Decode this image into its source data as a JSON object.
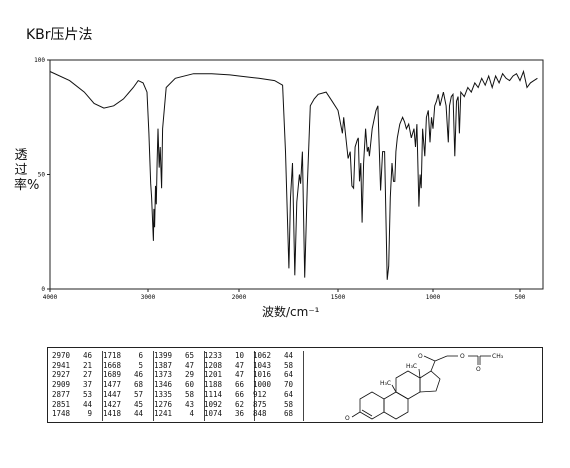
{
  "page": {
    "title": "KBr压片法"
  },
  "chart_data": {
    "type": "line",
    "xlabel": "波数/cm⁻¹",
    "ylabel": "透过率%",
    "xlim": [
      4000,
      400
    ],
    "ylim": [
      0,
      100
    ],
    "x_ticks": [
      4000,
      3000,
      2000,
      1500,
      1000,
      500
    ],
    "x_tick_labels": [
      "4000",
      "3000",
      "2000",
      "1500",
      "1000",
      "500"
    ],
    "y_ticks": [
      0,
      50,
      100
    ],
    "y_tick_labels": [
      "0",
      "50",
      "100"
    ],
    "grid": false,
    "series": [
      {
        "points": [
          [
            4000,
            95
          ],
          [
            3800,
            91
          ],
          [
            3650,
            86
          ],
          [
            3550,
            81
          ],
          [
            3450,
            79
          ],
          [
            3350,
            80
          ],
          [
            3250,
            83
          ],
          [
            3150,
            88
          ],
          [
            3100,
            91
          ],
          [
            3050,
            90
          ],
          [
            3010,
            86
          ],
          [
            2990,
            68
          ],
          [
            2970,
            46
          ],
          [
            2960,
            40
          ],
          [
            2941,
            21
          ],
          [
            2935,
            35
          ],
          [
            2927,
            27
          ],
          [
            2918,
            45
          ],
          [
            2909,
            37
          ],
          [
            2900,
            55
          ],
          [
            2890,
            70
          ],
          [
            2877,
            53
          ],
          [
            2866,
            62
          ],
          [
            2851,
            44
          ],
          [
            2840,
            70
          ],
          [
            2800,
            88
          ],
          [
            2700,
            92
          ],
          [
            2500,
            94
          ],
          [
            2300,
            94
          ],
          [
            2100,
            93.5
          ],
          [
            2000,
            93
          ],
          [
            1900,
            92
          ],
          [
            1820,
            91
          ],
          [
            1780,
            89
          ],
          [
            1765,
            60
          ],
          [
            1748,
            9
          ],
          [
            1740,
            40
          ],
          [
            1730,
            55
          ],
          [
            1718,
            6
          ],
          [
            1708,
            38
          ],
          [
            1695,
            50
          ],
          [
            1689,
            46
          ],
          [
            1680,
            60
          ],
          [
            1668,
            5
          ],
          [
            1655,
            45
          ],
          [
            1640,
            80
          ],
          [
            1620,
            83
          ],
          [
            1600,
            85
          ],
          [
            1560,
            86
          ],
          [
            1530,
            82
          ],
          [
            1500,
            78
          ],
          [
            1477,
            68
          ],
          [
            1470,
            75
          ],
          [
            1447,
            57
          ],
          [
            1436,
            60
          ],
          [
            1427,
            45
          ],
          [
            1418,
            44
          ],
          [
            1410,
            62
          ],
          [
            1399,
            65
          ],
          [
            1393,
            66
          ],
          [
            1387,
            47
          ],
          [
            1380,
            55
          ],
          [
            1373,
            29
          ],
          [
            1365,
            55
          ],
          [
            1355,
            70
          ],
          [
            1346,
            60
          ],
          [
            1340,
            62
          ],
          [
            1335,
            58
          ],
          [
            1320,
            70
          ],
          [
            1300,
            78
          ],
          [
            1290,
            80
          ],
          [
            1276,
            43
          ],
          [
            1265,
            60
          ],
          [
            1255,
            60
          ],
          [
            1241,
            4
          ],
          [
            1233,
            10
          ],
          [
            1225,
            40
          ],
          [
            1216,
            55
          ],
          [
            1208,
            47
          ],
          [
            1201,
            47
          ],
          [
            1195,
            60
          ],
          [
            1188,
            66
          ],
          [
            1175,
            72
          ],
          [
            1160,
            75
          ],
          [
            1150,
            73
          ],
          [
            1140,
            70
          ],
          [
            1128,
            72
          ],
          [
            1114,
            66
          ],
          [
            1100,
            70
          ],
          [
            1092,
            62
          ],
          [
            1085,
            72
          ],
          [
            1074,
            36
          ],
          [
            1068,
            50
          ],
          [
            1062,
            44
          ],
          [
            1055,
            70
          ],
          [
            1043,
            58
          ],
          [
            1035,
            75
          ],
          [
            1025,
            78
          ],
          [
            1016,
            64
          ],
          [
            1008,
            75
          ],
          [
            1000,
            70
          ],
          [
            990,
            80
          ],
          [
            980,
            82
          ],
          [
            970,
            85
          ],
          [
            960,
            80
          ],
          [
            950,
            83
          ],
          [
            940,
            86
          ],
          [
            925,
            80
          ],
          [
            912,
            64
          ],
          [
            905,
            80
          ],
          [
            895,
            84
          ],
          [
            885,
            85
          ],
          [
            875,
            58
          ],
          [
            865,
            82
          ],
          [
            856,
            84
          ],
          [
            848,
            68
          ],
          [
            840,
            86
          ],
          [
            820,
            84
          ],
          [
            800,
            88
          ],
          [
            780,
            86
          ],
          [
            760,
            90
          ],
          [
            740,
            88
          ],
          [
            720,
            92
          ],
          [
            700,
            89
          ],
          [
            680,
            93
          ],
          [
            660,
            88
          ],
          [
            640,
            93
          ],
          [
            620,
            90
          ],
          [
            600,
            94
          ],
          [
            580,
            92
          ],
          [
            560,
            91
          ],
          [
            540,
            93
          ],
          [
            520,
            94
          ],
          [
            500,
            91
          ],
          [
            480,
            95
          ],
          [
            460,
            88
          ],
          [
            440,
            90
          ],
          [
            420,
            91
          ],
          [
            400,
            92
          ]
        ]
      }
    ]
  },
  "peaks": [
    [
      [
        "2970",
        "46"
      ],
      [
        "2941",
        "21"
      ],
      [
        "2927",
        "27"
      ],
      [
        "2909",
        "37"
      ],
      [
        "2877",
        "53"
      ],
      [
        "2851",
        "44"
      ],
      [
        "1748",
        "9"
      ]
    ],
    [
      [
        "1718",
        "6"
      ],
      [
        "1668",
        "5"
      ],
      [
        "1689",
        "46"
      ],
      [
        "1477",
        "68"
      ],
      [
        "1447",
        "57"
      ],
      [
        "1427",
        "45"
      ],
      [
        "1418",
        "44"
      ]
    ],
    [
      [
        "1399",
        "65"
      ],
      [
        "1387",
        "47"
      ],
      [
        "1373",
        "29"
      ],
      [
        "1346",
        "60"
      ],
      [
        "1335",
        "58"
      ],
      [
        "1276",
        "43"
      ],
      [
        "1241",
        "4"
      ]
    ],
    [
      [
        "1233",
        "10"
      ],
      [
        "1208",
        "47"
      ],
      [
        "1201",
        "47"
      ],
      [
        "1188",
        "66"
      ],
      [
        "1114",
        "66"
      ],
      [
        "1092",
        "62"
      ],
      [
        "1074",
        "36"
      ]
    ],
    [
      [
        "1062",
        "44"
      ],
      [
        "1043",
        "58"
      ],
      [
        "1016",
        "64"
      ],
      [
        "1000",
        "70"
      ],
      [
        "912",
        "64"
      ],
      [
        "875",
        "58"
      ],
      [
        "848",
        "68"
      ]
    ]
  ],
  "structure": {
    "atom_o1": "O",
    "atom_o2": "O",
    "atom_o3": "O",
    "atom_o4": "O",
    "atom_ch3": "CH₃",
    "atom_me1": "H₃C",
    "atom_me2": "H₃C"
  }
}
